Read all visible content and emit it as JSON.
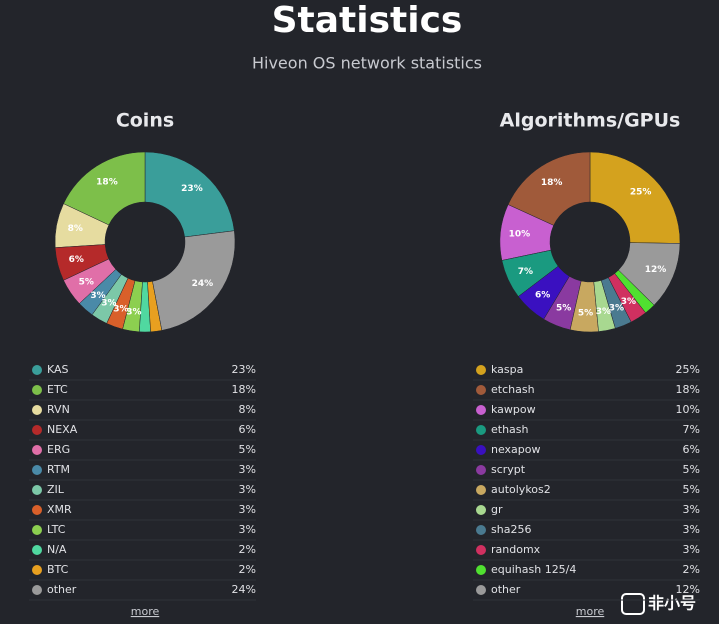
{
  "header": {
    "title": "Statistics",
    "subtitle": "Hiveon OS network statistics"
  },
  "chart_data": [
    {
      "type": "pie",
      "title": "Coins",
      "categories": [
        "KAS",
        "ETC",
        "RVN",
        "NEXA",
        "ERG",
        "RTM",
        "ZIL",
        "XMR",
        "LTC",
        "N/A",
        "BTC",
        "other"
      ],
      "values": [
        23,
        18,
        8,
        6,
        5,
        3,
        3,
        3,
        3,
        2,
        2,
        24
      ],
      "value_labels": [
        "23%",
        "18%",
        "8%",
        "6%",
        "5%",
        "3%",
        "3%",
        "3%",
        "3%",
        "2%",
        "2%",
        "24%"
      ],
      "colors": [
        "#3a9e9a",
        "#7dbf4a",
        "#e6dca0",
        "#b52a2a",
        "#e06fa8",
        "#4a8aa8",
        "#7cc8a8",
        "#d9602a",
        "#8ccf50",
        "#50d8a0",
        "#e8a020",
        "#9a9a9a"
      ],
      "more_link": "more"
    },
    {
      "type": "pie",
      "title": "Algorithms/GPUs",
      "categories": [
        "kaspa",
        "etchash",
        "kawpow",
        "ethash",
        "nexapow",
        "scrypt",
        "autolykos2",
        "gr",
        "sha256",
        "randomx",
        "equihash 125/4",
        "other"
      ],
      "values": [
        25,
        18,
        10,
        7,
        6,
        5,
        5,
        3,
        3,
        3,
        2,
        12
      ],
      "value_labels": [
        "25%",
        "18%",
        "10%",
        "7%",
        "6%",
        "5%",
        "5%",
        "3%",
        "3%",
        "3%",
        "2%",
        "12%"
      ],
      "colors": [
        "#d4a21e",
        "#a05a3a",
        "#c860d0",
        "#1a9a80",
        "#3a10c0",
        "#8a3aa0",
        "#c8a860",
        "#a8d890",
        "#4a7a90",
        "#d03060",
        "#50e030",
        "#9a9a9a"
      ],
      "more_link": "more"
    }
  ],
  "watermark": "非小号"
}
